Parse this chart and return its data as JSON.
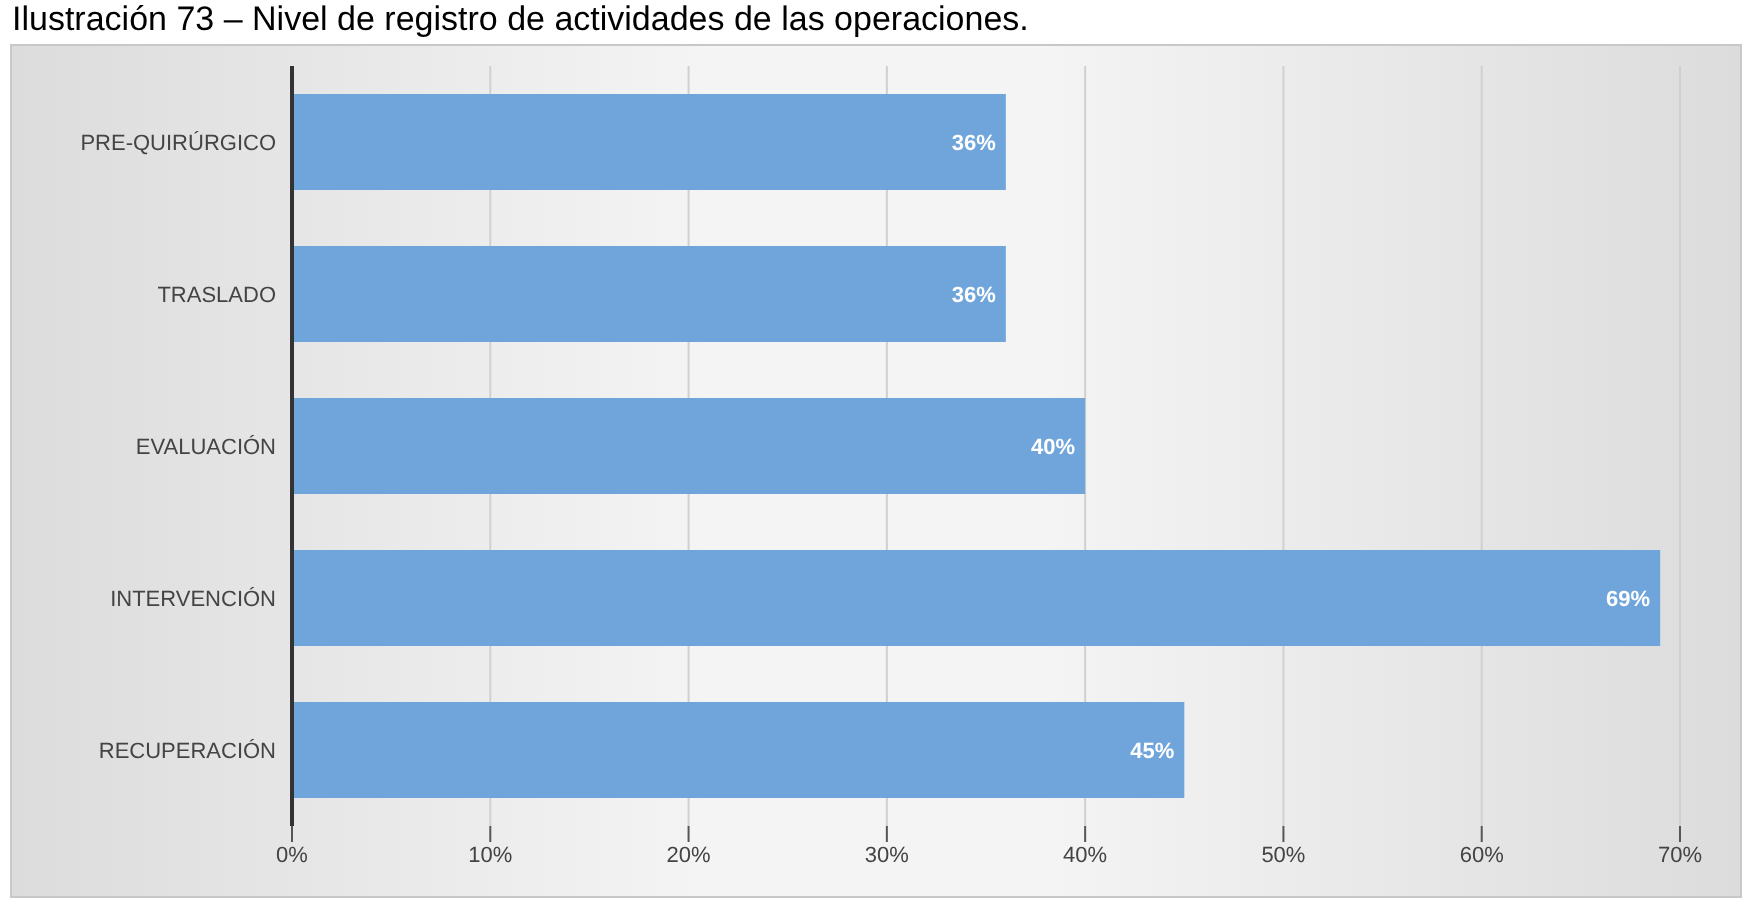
{
  "chart_data": {
    "type": "bar",
    "orientation": "horizontal",
    "title": "Ilustración 73 – Nivel de registro de actividades de las operaciones.",
    "categories": [
      "PRE-QUIRÚRGICO",
      "TRASLADO",
      "EVALUACIÓN",
      "INTERVENCIÓN",
      "RECUPERACIÓN"
    ],
    "values": [
      36,
      36,
      40,
      69,
      45
    ],
    "value_labels": [
      "36%",
      "36%",
      "40%",
      "69%",
      "45%"
    ],
    "color": "#6fa5da",
    "xlim": [
      0,
      70
    ],
    "xticks": [
      {
        "value": 0,
        "label": "0%"
      },
      {
        "value": 10,
        "label": "10%"
      },
      {
        "value": 20,
        "label": "20%"
      },
      {
        "value": 30,
        "label": "30%"
      },
      {
        "value": 40,
        "label": "40%"
      },
      {
        "value": 50,
        "label": "50%"
      },
      {
        "value": 60,
        "label": "60%"
      },
      {
        "value": 70,
        "label": "70%"
      }
    ],
    "grid": "x"
  }
}
